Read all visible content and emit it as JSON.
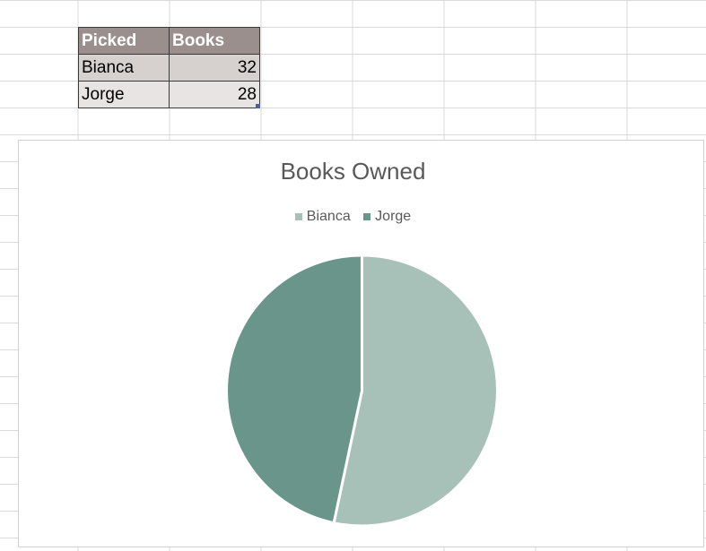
{
  "table": {
    "headers": [
      "Picked",
      "Books"
    ],
    "header_color": "#9a8f8c",
    "rows": [
      {
        "name": "Bianca",
        "value": "32"
      },
      {
        "name": "Jorge",
        "value": "28"
      }
    ]
  },
  "chart_data": {
    "type": "pie",
    "title": "Books Owned",
    "categories": [
      "Bianca",
      "Jorge"
    ],
    "values": [
      32,
      28
    ],
    "colors": [
      "#a7c1b9",
      "#6a958b"
    ],
    "legend_position": "top"
  }
}
